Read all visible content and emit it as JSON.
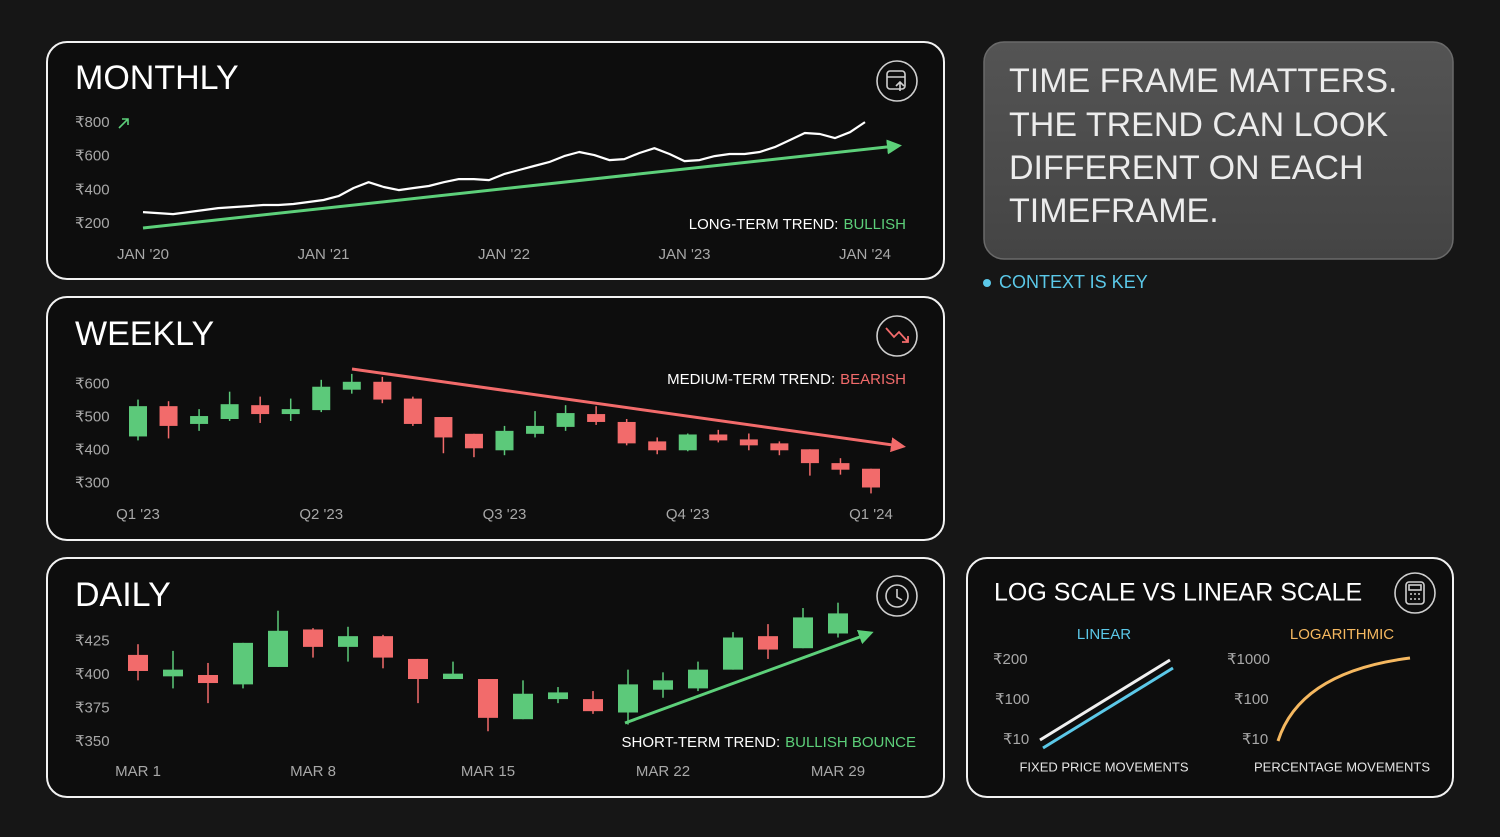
{
  "chart_data": [
    {
      "type": "line",
      "title": "MONTHLY",
      "categories": [
        "JAN '20",
        null,
        null,
        null,
        null,
        null,
        null,
        null,
        null,
        null,
        null,
        null,
        "JAN '21",
        null,
        null,
        null,
        null,
        null,
        null,
        null,
        null,
        null,
        null,
        null,
        "JAN '22",
        null,
        null,
        null,
        null,
        null,
        null,
        null,
        null,
        null,
        null,
        null,
        "JAN '23",
        null,
        null,
        null,
        null,
        null,
        null,
        null,
        null,
        null,
        null,
        null,
        "JAN '24"
      ],
      "values": [
        271,
        265,
        259,
        271,
        283,
        295,
        301,
        307,
        313,
        313,
        319,
        331,
        343,
        366,
        414,
        449,
        420,
        402,
        414,
        426,
        449,
        467,
        467,
        461,
        497,
        521,
        545,
        568,
        604,
        628,
        610,
        580,
        586,
        622,
        651,
        616,
        574,
        580,
        604,
        616,
        616,
        628,
        657,
        699,
        741,
        735,
        711,
        746,
        806
      ],
      "color": "#ffffff",
      "ylim": [
        135,
        848
      ],
      "yticks": [
        {
          "value": 200,
          "label": "₹200"
        },
        {
          "value": 400,
          "label": "₹400"
        },
        {
          "value": 600,
          "label": "₹600"
        },
        {
          "value": 800,
          "label": "₹800"
        }
      ],
      "annotation": {
        "label": "LONG-TERM TREND:",
        "value": "BULLISH",
        "color": "#5dd07a"
      }
    },
    {
      "type": "candlestick",
      "title": "WEEKLY",
      "categories": [
        "Q1 '23",
        null,
        null,
        null,
        null,
        null,
        "Q2 '23",
        null,
        null,
        null,
        null,
        null,
        "Q3 '23",
        null,
        null,
        null,
        null,
        null,
        "Q4 '23",
        null,
        null,
        null,
        null,
        null,
        "Q1 '24"
      ],
      "open": [
        443,
        535,
        481,
        496,
        538,
        511,
        523,
        585,
        609,
        558,
        502,
        451,
        401,
        451,
        472,
        511,
        487,
        428,
        401,
        449,
        434,
        422,
        404,
        362,
        345
      ],
      "high": [
        555,
        550,
        526,
        579,
        564,
        558,
        615,
        633,
        624,
        564,
        502,
        451,
        475,
        520,
        538,
        535,
        496,
        440,
        452,
        463,
        452,
        428,
        404,
        377,
        345
      ],
      "low": [
        431,
        437,
        460,
        490,
        484,
        490,
        517,
        573,
        544,
        475,
        392,
        380,
        386,
        440,
        460,
        478,
        416,
        389,
        398,
        425,
        401,
        386,
        324,
        327,
        270
      ],
      "close": [
        535,
        475,
        505,
        541,
        511,
        526,
        594,
        609,
        555,
        481,
        440,
        407,
        460,
        475,
        514,
        487,
        422,
        401,
        449,
        431,
        416,
        401,
        362,
        342,
        288
      ],
      "up_color": "#5cc97a",
      "down_color": "#f26b6b",
      "ylim": [
        250,
        660
      ],
      "yticks": [
        {
          "value": 300,
          "label": "₹300"
        },
        {
          "value": 400,
          "label": "₹400"
        },
        {
          "value": 500,
          "label": "₹500"
        },
        {
          "value": 600,
          "label": "₹600"
        }
      ],
      "annotation": {
        "label": "MEDIUM-TERM TREND:",
        "value": "BEARISH",
        "color": "#f26b6b"
      }
    },
    {
      "type": "candlestick",
      "title": "DAILY",
      "categories": [
        "MAR 1",
        null,
        null,
        null,
        null,
        "MAR 8",
        null,
        null,
        null,
        null,
        "MAR 15",
        null,
        null,
        null,
        null,
        "MAR 22",
        null,
        null,
        null,
        null,
        "MAR 29"
      ],
      "open": [
        415,
        399,
        400,
        393,
        406,
        434,
        421,
        429,
        412,
        397,
        397,
        367,
        382,
        382,
        372,
        389,
        390,
        404,
        429,
        420,
        431
      ],
      "high": [
        423,
        418,
        409,
        424,
        448,
        435,
        436,
        430,
        412,
        410,
        397,
        396,
        391,
        388,
        404,
        402,
        410,
        432,
        438,
        450,
        454
      ],
      "low": [
        396,
        390,
        379,
        390,
        406,
        413,
        410,
        405,
        379,
        397,
        358,
        367,
        379,
        371,
        363,
        383,
        388,
        404,
        412,
        420,
        428
      ],
      "close": [
        403,
        404,
        394,
        424,
        433,
        421,
        429,
        413,
        397,
        401,
        368,
        386,
        387,
        373,
        393,
        396,
        404,
        428,
        419,
        443,
        446
      ],
      "up_color": "#5cc97a",
      "down_color": "#f26b6b",
      "ylim": [
        344,
        456
      ],
      "yticks": [
        {
          "value": 350,
          "label": "₹350"
        },
        {
          "value": 375,
          "label": "₹375"
        },
        {
          "value": 400,
          "label": "₹400"
        },
        {
          "value": 425,
          "label": "₹425"
        }
      ],
      "annotation": {
        "label": "SHORT-TERM TREND:",
        "value": "BULLISH BOUNCE",
        "color": "#5dd07a"
      }
    }
  ],
  "callout": {
    "lines": [
      "TIME FRAME MATTERS.",
      "THE TREND CAN LOOK",
      "DIFFERENT ON EACH",
      "TIMEFRAME."
    ]
  },
  "context": "CONTEXT IS KEY",
  "scale_panel": {
    "title": "LOG SCALE VS LINEAR SCALE",
    "linear": {
      "label": "LINEAR",
      "ticks": [
        "₹200",
        "₹100",
        "₹10"
      ],
      "caption": "FIXED PRICE MOVEMENTS"
    },
    "log": {
      "label": "LOGARITHMIC",
      "ticks": [
        "₹1000",
        "₹100",
        "₹10"
      ],
      "caption": "PERCENTAGE MOVEMENTS"
    }
  }
}
